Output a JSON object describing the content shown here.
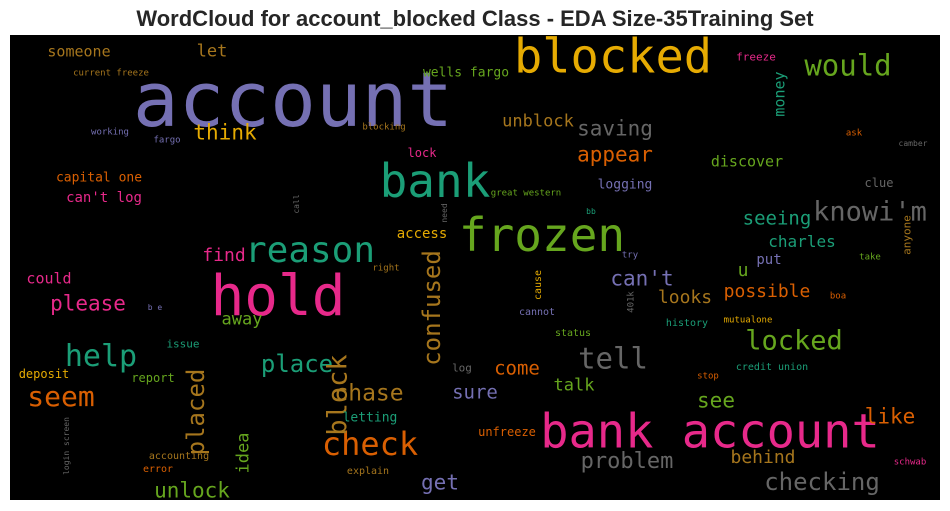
{
  "chart_data": {
    "type": "wordcloud",
    "title": "WordCloud for account_blocked Class - EDA Size-35Training Set",
    "background": "#000000",
    "words": [
      {
        "text": "account",
        "weight": 1.0,
        "color": "#7570b3",
        "vertical": false
      },
      {
        "text": "blocked",
        "weight": 0.62,
        "color": "#e6ab02",
        "vertical": false
      },
      {
        "text": "bank",
        "weight": 0.6,
        "color": "#1b9e77",
        "vertical": false
      },
      {
        "text": "hold",
        "weight": 0.74,
        "color": "#e7298a",
        "vertical": false
      },
      {
        "text": "frozen",
        "weight": 0.6,
        "color": "#66a61e",
        "vertical": false
      },
      {
        "text": "bank account",
        "weight": 0.62,
        "color": "#e7298a",
        "vertical": false
      },
      {
        "text": "would",
        "weight": 0.38,
        "color": "#66a61e",
        "vertical": false
      },
      {
        "text": "reason",
        "weight": 0.48,
        "color": "#1b9e77",
        "vertical": false
      },
      {
        "text": "check",
        "weight": 0.42,
        "color": "#d95f02",
        "vertical": false
      },
      {
        "text": "help",
        "weight": 0.4,
        "color": "#1b9e77",
        "vertical": false
      },
      {
        "text": "seem",
        "weight": 0.37,
        "color": "#d95f02",
        "vertical": false
      },
      {
        "text": "knowi'm",
        "weight": 0.36,
        "color": "#666666",
        "vertical": false
      },
      {
        "text": "tell",
        "weight": 0.38,
        "color": "#666666",
        "vertical": false
      },
      {
        "text": "locked",
        "weight": 0.36,
        "color": "#66a61e",
        "vertical": false
      },
      {
        "text": "checking",
        "weight": 0.32,
        "color": "#666666",
        "vertical": false
      },
      {
        "text": "place",
        "weight": 0.31,
        "color": "#1b9e77",
        "vertical": false
      },
      {
        "text": "block",
        "weight": 0.35,
        "color": "#a6761d",
        "vertical": true
      },
      {
        "text": "placed",
        "weight": 0.32,
        "color": "#a6761d",
        "vertical": true
      },
      {
        "text": "confused",
        "weight": 0.31,
        "color": "#a6761d",
        "vertical": true
      },
      {
        "text": "chase",
        "weight": 0.3,
        "color": "#a6761d",
        "vertical": false
      },
      {
        "text": "problem",
        "weight": 0.29,
        "color": "#666666",
        "vertical": false
      },
      {
        "text": "saving",
        "weight": 0.28,
        "color": "#666666",
        "vertical": false
      },
      {
        "text": "think",
        "weight": 0.28,
        "color": "#e6ab02",
        "vertical": false
      },
      {
        "text": "can't",
        "weight": 0.28,
        "color": "#7570b3",
        "vertical": false
      },
      {
        "text": "please",
        "weight": 0.28,
        "color": "#e7298a",
        "vertical": false
      },
      {
        "text": "appear",
        "weight": 0.27,
        "color": "#d95f02",
        "vertical": false
      },
      {
        "text": "unlock",
        "weight": 0.27,
        "color": "#66a61e",
        "vertical": false
      },
      {
        "text": "get",
        "weight": 0.27,
        "color": "#7570b3",
        "vertical": false
      },
      {
        "text": "see",
        "weight": 0.27,
        "color": "#66a61e",
        "vertical": false
      },
      {
        "text": "like",
        "weight": 0.27,
        "color": "#d95f02",
        "vertical": false
      },
      {
        "text": "seeing",
        "weight": 0.25,
        "color": "#1b9e77",
        "vertical": false
      },
      {
        "text": "sure",
        "weight": 0.25,
        "color": "#7570b3",
        "vertical": false
      },
      {
        "text": "come",
        "weight": 0.25,
        "color": "#d95f02",
        "vertical": false
      },
      {
        "text": "looks",
        "weight": 0.24,
        "color": "#a6761d",
        "vertical": false
      },
      {
        "text": "possible",
        "weight": 0.24,
        "color": "#d95f02",
        "vertical": false
      },
      {
        "text": "behind",
        "weight": 0.24,
        "color": "#a6761d",
        "vertical": false
      },
      {
        "text": "find",
        "weight": 0.24,
        "color": "#e7298a",
        "vertical": false
      },
      {
        "text": "unblock",
        "weight": 0.23,
        "color": "#a6761d",
        "vertical": false
      },
      {
        "text": "let",
        "weight": 0.22,
        "color": "#a6761d",
        "vertical": false
      },
      {
        "text": "u",
        "weight": 0.24,
        "color": "#66a61e",
        "vertical": false
      },
      {
        "text": "idea",
        "weight": 0.23,
        "color": "#66a61e",
        "vertical": true
      },
      {
        "text": "talk",
        "weight": 0.22,
        "color": "#66a61e",
        "vertical": false
      },
      {
        "text": "away",
        "weight": 0.22,
        "color": "#66a61e",
        "vertical": false
      },
      {
        "text": "charles",
        "weight": 0.21,
        "color": "#1b9e77",
        "vertical": false
      },
      {
        "text": "discover",
        "weight": 0.2,
        "color": "#66a61e",
        "vertical": false
      },
      {
        "text": "someone",
        "weight": 0.2,
        "color": "#a6761d",
        "vertical": false
      },
      {
        "text": "money",
        "weight": 0.2,
        "color": "#1b9e77",
        "vertical": true
      },
      {
        "text": "could",
        "weight": 0.2,
        "color": "#e7298a",
        "vertical": false
      },
      {
        "text": "put",
        "weight": 0.19,
        "color": "#7570b3",
        "vertical": false
      },
      {
        "text": "access",
        "weight": 0.19,
        "color": "#e6ab02",
        "vertical": false
      },
      {
        "text": "can't log",
        "weight": 0.19,
        "color": "#e7298a",
        "vertical": false
      },
      {
        "text": "capital one",
        "weight": 0.17,
        "color": "#d95f02",
        "vertical": false
      },
      {
        "text": "logging",
        "weight": 0.17,
        "color": "#7570b3",
        "vertical": false
      },
      {
        "text": "wells fargo",
        "weight": 0.17,
        "color": "#66a61e",
        "vertical": false
      },
      {
        "text": "lock",
        "weight": 0.16,
        "color": "#e7298a",
        "vertical": false
      },
      {
        "text": "clue",
        "weight": 0.16,
        "color": "#666666",
        "vertical": false
      },
      {
        "text": "letting",
        "weight": 0.17,
        "color": "#1b9e77",
        "vertical": false
      },
      {
        "text": "unfreeze",
        "weight": 0.16,
        "color": "#d95f02",
        "vertical": false
      },
      {
        "text": "report",
        "weight": 0.16,
        "color": "#66a61e",
        "vertical": false
      },
      {
        "text": "deposit",
        "weight": 0.16,
        "color": "#e6ab02",
        "vertical": false
      },
      {
        "text": "issue",
        "weight": 0.15,
        "color": "#1b9e77",
        "vertical": false
      },
      {
        "text": "log",
        "weight": 0.15,
        "color": "#666666",
        "vertical": false
      },
      {
        "text": "freeze",
        "weight": 0.15,
        "color": "#e7298a",
        "vertical": false
      },
      {
        "text": "anyone",
        "weight": 0.15,
        "color": "#a6761d",
        "vertical": true
      },
      {
        "text": "accounting",
        "weight": 0.13,
        "color": "#a6761d",
        "vertical": false
      },
      {
        "text": "error",
        "weight": 0.13,
        "color": "#d95f02",
        "vertical": false
      },
      {
        "text": "explain",
        "weight": 0.13,
        "color": "#a6761d",
        "vertical": false
      },
      {
        "text": "credit union",
        "weight": 0.13,
        "color": "#1b9e77",
        "vertical": false
      },
      {
        "text": "stop",
        "weight": 0.12,
        "color": "#d95f02",
        "vertical": false
      },
      {
        "text": "schwab",
        "weight": 0.12,
        "color": "#e7298a",
        "vertical": false
      },
      {
        "text": "history",
        "weight": 0.13,
        "color": "#1b9e77",
        "vertical": false
      },
      {
        "text": "mutualone",
        "weight": 0.12,
        "color": "#e6ab02",
        "vertical": false
      },
      {
        "text": "boa",
        "weight": 0.12,
        "color": "#d95f02",
        "vertical": false
      },
      {
        "text": "take",
        "weight": 0.12,
        "color": "#66a61e",
        "vertical": false
      },
      {
        "text": "try",
        "weight": 0.12,
        "color": "#7570b3",
        "vertical": false
      },
      {
        "text": "status",
        "weight": 0.13,
        "color": "#66a61e",
        "vertical": false
      },
      {
        "text": "cannot",
        "weight": 0.13,
        "color": "#7570b3",
        "vertical": false
      },
      {
        "text": "cause",
        "weight": 0.13,
        "color": "#e6ab02",
        "vertical": true
      },
      {
        "text": "401k",
        "weight": 0.12,
        "color": "#666666",
        "vertical": true
      },
      {
        "text": "right",
        "weight": 0.12,
        "color": "#a6761d",
        "vertical": false
      },
      {
        "text": "b e",
        "weight": 0.11,
        "color": "#7570b3",
        "vertical": false
      },
      {
        "text": "login screen",
        "weight": 0.11,
        "color": "#666666",
        "vertical": true
      },
      {
        "text": "call",
        "weight": 0.11,
        "color": "#666666",
        "vertical": true
      },
      {
        "text": "need",
        "weight": 0.1,
        "color": "#666666",
        "vertical": true
      },
      {
        "text": "great western",
        "weight": 0.12,
        "color": "#66a61e",
        "vertical": false
      },
      {
        "text": "bb",
        "weight": 0.11,
        "color": "#1b9e77",
        "vertical": false
      },
      {
        "text": "blocking",
        "weight": 0.12,
        "color": "#a6761d",
        "vertical": false
      },
      {
        "text": "current freeze",
        "weight": 0.12,
        "color": "#a6761d",
        "vertical": false
      },
      {
        "text": "working",
        "weight": 0.12,
        "color": "#7570b3",
        "vertical": false
      },
      {
        "text": "fargo",
        "weight": 0.12,
        "color": "#7570b3",
        "vertical": false
      },
      {
        "text": "ask",
        "weight": 0.12,
        "color": "#d95f02",
        "vertical": false
      },
      {
        "text": "camber",
        "weight": 0.11,
        "color": "#666666",
        "vertical": false
      }
    ]
  }
}
